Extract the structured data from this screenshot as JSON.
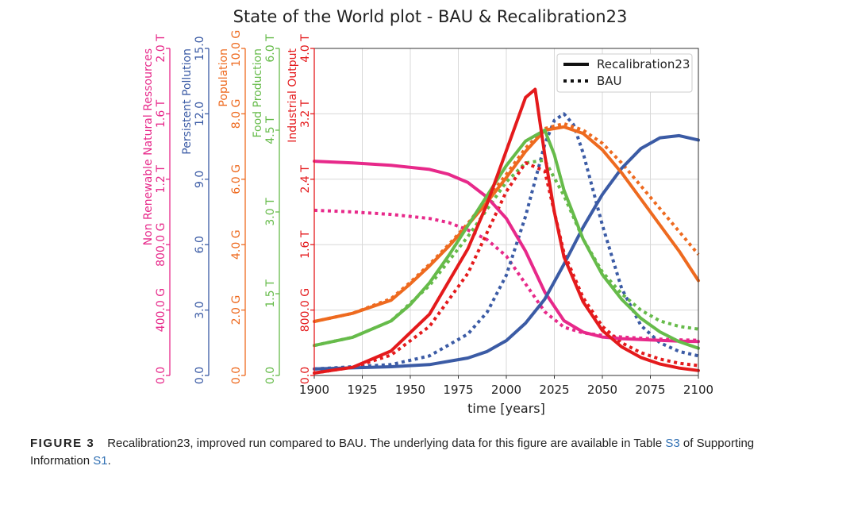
{
  "chart_data": {
    "type": "line",
    "title": "State of the World plot - BAU & Recalibration23",
    "xlabel": "time [years]",
    "xlim": [
      1900,
      2100
    ],
    "x_ticks": [
      1900,
      1925,
      1950,
      1975,
      2000,
      2025,
      2050,
      2075,
      2100
    ],
    "legend": {
      "position": "top-right",
      "entries": [
        {
          "label": "Recalibration23",
          "style": "solid"
        },
        {
          "label": "BAU",
          "style": "dotted"
        }
      ]
    },
    "axes": [
      {
        "id": "nrr",
        "label": "Non Renewable Natural Ressources",
        "color": "#e7298a",
        "max": 2000,
        "ticks": [
          0,
          400,
          800,
          1200,
          1600,
          2000
        ],
        "tick_labels": [
          "0.0",
          "400.0 G",
          "800.0 G",
          "1.2 T",
          "1.6 T",
          "2.0 T"
        ]
      },
      {
        "id": "pp",
        "label": "Persistent Pollution",
        "color": "#3b5ba5",
        "max": 15,
        "ticks": [
          0,
          3,
          6,
          9,
          12,
          15
        ],
        "tick_labels": [
          "0.0",
          "3.0",
          "6.0",
          "9.0",
          "12.0",
          "15.0"
        ]
      },
      {
        "id": "pop",
        "label": "Population",
        "color": "#ee6a1f",
        "max": 10,
        "ticks": [
          0,
          2,
          4,
          6,
          8,
          10
        ],
        "tick_labels": [
          "0.0",
          "2.0 G",
          "4.0 G",
          "6.0 G",
          "8.0 G",
          "10.0 G"
        ]
      },
      {
        "id": "food",
        "label": "Food Production",
        "color": "#66bb4a",
        "max": 6,
        "ticks": [
          0,
          1.5,
          3,
          4.5,
          6
        ],
        "tick_labels": [
          "0.0",
          "1.5 T",
          "3.0 T",
          "4.5 T",
          "6.0 T"
        ]
      },
      {
        "id": "io",
        "label": "Industrial Output",
        "color": "#e41a1c",
        "max": 4,
        "ticks": [
          0,
          0.8,
          1.6,
          2.4,
          3.2,
          4
        ],
        "tick_labels": [
          "0.0",
          "800.0 G",
          "1.6 T",
          "2.4 T",
          "3.2 T",
          "4.0 T"
        ]
      }
    ],
    "series": [
      {
        "axis": "nrr",
        "style": "solid",
        "x": [
          1900,
          1920,
          1940,
          1960,
          1970,
          1980,
          1990,
          2000,
          2010,
          2020,
          2030,
          2040,
          2050,
          2060,
          2070,
          2080,
          2090,
          2100
        ],
        "y": [
          1310,
          1300,
          1285,
          1260,
          1230,
          1180,
          1090,
          960,
          760,
          510,
          335,
          265,
          235,
          225,
          220,
          215,
          210,
          208
        ]
      },
      {
        "axis": "nrr",
        "style": "dotted",
        "x": [
          1900,
          1920,
          1940,
          1960,
          1970,
          1980,
          1990,
          2000,
          2010,
          2020,
          2030,
          2040,
          2050,
          2060,
          2070,
          2080,
          2090,
          2100
        ],
        "y": [
          1010,
          1000,
          985,
          960,
          935,
          890,
          830,
          730,
          560,
          390,
          295,
          260,
          245,
          235,
          228,
          222,
          218,
          215
        ]
      },
      {
        "axis": "pp",
        "style": "solid",
        "x": [
          1900,
          1920,
          1940,
          1960,
          1980,
          1990,
          2000,
          2010,
          2020,
          2030,
          2040,
          2050,
          2060,
          2070,
          2080,
          2090,
          2100
        ],
        "y": [
          0.3,
          0.35,
          0.4,
          0.5,
          0.8,
          1.1,
          1.6,
          2.4,
          3.5,
          5.1,
          6.8,
          8.3,
          9.5,
          10.4,
          10.9,
          11.0,
          10.8
        ]
      },
      {
        "axis": "pp",
        "style": "dotted",
        "x": [
          1900,
          1920,
          1940,
          1960,
          1980,
          1990,
          2000,
          2010,
          2020,
          2025,
          2030,
          2035,
          2040,
          2050,
          2060,
          2070,
          2080,
          2090,
          2100
        ],
        "y": [
          0.3,
          0.4,
          0.5,
          0.9,
          1.9,
          2.9,
          4.6,
          7.3,
          10.6,
          11.7,
          12.0,
          11.5,
          10.2,
          6.9,
          4.0,
          2.3,
          1.5,
          1.1,
          0.9
        ]
      },
      {
        "axis": "pop",
        "style": "solid",
        "x": [
          1900,
          1920,
          1940,
          1950,
          1960,
          1970,
          1980,
          1990,
          2000,
          2010,
          2020,
          2030,
          2040,
          2050,
          2060,
          2070,
          2080,
          2090,
          2100
        ],
        "y": [
          1.65,
          1.9,
          2.3,
          2.8,
          3.35,
          3.95,
          4.6,
          5.3,
          6.05,
          6.85,
          7.5,
          7.6,
          7.4,
          6.9,
          6.2,
          5.4,
          4.6,
          3.8,
          2.9
        ]
      },
      {
        "axis": "pop",
        "style": "dotted",
        "x": [
          1900,
          1920,
          1940,
          1950,
          1960,
          1970,
          1980,
          1990,
          2000,
          2010,
          2020,
          2030,
          2040,
          2050,
          2060,
          2070,
          2080,
          2090,
          2100
        ],
        "y": [
          1.65,
          1.9,
          2.35,
          2.85,
          3.4,
          4.0,
          4.65,
          5.4,
          6.15,
          6.95,
          7.55,
          7.7,
          7.5,
          7.1,
          6.5,
          5.8,
          5.1,
          4.4,
          3.7
        ]
      },
      {
        "axis": "food",
        "style": "solid",
        "x": [
          1900,
          1920,
          1940,
          1950,
          1960,
          1970,
          1980,
          1990,
          2000,
          2010,
          2020,
          2025,
          2030,
          2040,
          2050,
          2060,
          2070,
          2080,
          2090,
          2100
        ],
        "y": [
          0.55,
          0.7,
          1.0,
          1.3,
          1.7,
          2.2,
          2.75,
          3.3,
          3.85,
          4.3,
          4.5,
          4.05,
          3.4,
          2.5,
          1.85,
          1.4,
          1.05,
          0.8,
          0.62,
          0.5
        ]
      },
      {
        "axis": "food",
        "style": "dotted",
        "x": [
          1900,
          1920,
          1940,
          1960,
          1980,
          1990,
          2000,
          2010,
          2020,
          2030,
          2040,
          2050,
          2060,
          2070,
          2080,
          2090,
          2100
        ],
        "y": [
          0.55,
          0.7,
          1.0,
          1.65,
          2.55,
          3.05,
          3.55,
          3.9,
          3.95,
          3.3,
          2.5,
          1.9,
          1.5,
          1.2,
          1.0,
          0.9,
          0.85
        ]
      },
      {
        "axis": "io",
        "style": "solid",
        "x": [
          1900,
          1920,
          1940,
          1960,
          1980,
          1990,
          2000,
          2010,
          2015,
          2020,
          2025,
          2030,
          2040,
          2050,
          2060,
          2070,
          2080,
          2090,
          2100
        ],
        "y": [
          0.03,
          0.1,
          0.3,
          0.75,
          1.55,
          2.1,
          2.75,
          3.4,
          3.5,
          2.7,
          2.0,
          1.45,
          0.9,
          0.55,
          0.35,
          0.22,
          0.14,
          0.09,
          0.06
        ]
      },
      {
        "axis": "io",
        "style": "dotted",
        "x": [
          1900,
          1920,
          1940,
          1960,
          1980,
          1990,
          2000,
          2010,
          2020,
          2025,
          2030,
          2040,
          2050,
          2060,
          2070,
          2080,
          2090,
          2100
        ],
        "y": [
          0.03,
          0.1,
          0.25,
          0.6,
          1.25,
          1.75,
          2.25,
          2.6,
          2.5,
          2.0,
          1.5,
          0.95,
          0.6,
          0.4,
          0.28,
          0.2,
          0.15,
          0.12
        ]
      }
    ]
  },
  "caption": {
    "label": "FIGURE 3",
    "text_before": "Recalibration23, improved run compared to BAU. The underlying data for this figure are available in Table ",
    "table_ref": "S3",
    "text_middle": " of Supporting Information ",
    "info_ref": "S1",
    "text_after": "."
  }
}
